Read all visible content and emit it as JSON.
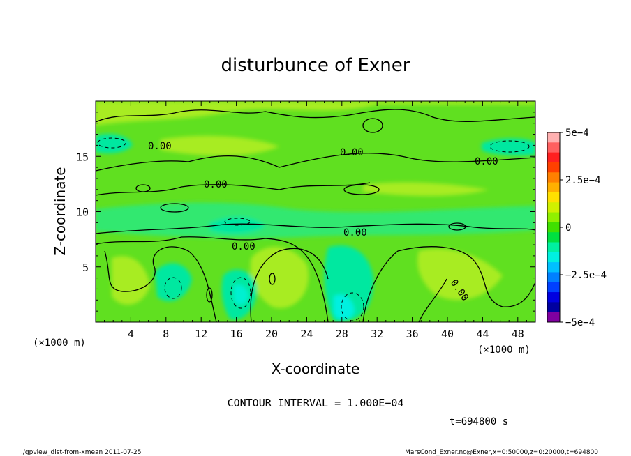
{
  "chart_data": {
    "type": "heatmap",
    "title": "disturbunce of Exner",
    "xlabel": "X-coordinate",
    "ylabel": "Z-coordinate",
    "x_unit": "(×1000 m)",
    "y_unit": "(×1000 m)",
    "xlim": [
      0,
      50
    ],
    "ylim": [
      0,
      20
    ],
    "x_ticks": [
      4,
      8,
      12,
      16,
      20,
      24,
      28,
      32,
      36,
      40,
      44,
      48
    ],
    "y_ticks": [
      5,
      10,
      15
    ],
    "colorbar": {
      "min": -0.0005,
      "max": 0.0005,
      "tick_values": [
        0.0005,
        0.00025,
        0,
        -0.00025,
        -0.0005
      ],
      "tick_labels": [
        "5e−4",
        "2.5e−4",
        "0",
        "−2.5e−4",
        "−5e−4"
      ],
      "colors": [
        "#ffb0b0",
        "#ff6060",
        "#ff2020",
        "#ff4000",
        "#ff8000",
        "#ffb000",
        "#ffe000",
        "#d0f000",
        "#90f000",
        "#40e000",
        "#00e040",
        "#00f0a0",
        "#00f0e0",
        "#00c0ff",
        "#0080ff",
        "#0040ff",
        "#0000e0",
        "#0000a0",
        "#8000a0"
      ]
    },
    "contour_labels": [
      "0.00",
      "0.00",
      "0.00",
      "0.00",
      "0.00",
      "0.00",
      "0.00"
    ],
    "contour_interval": "CONTOUR INTERVAL = 1.000E−04",
    "time_label": "t=694800 s"
  },
  "footer": {
    "left": "./gpview_dist-from-xmean   2011-07-25",
    "right": "MarsCond_Exner.nc@Exner,x=0:50000,z=0:20000,t=694800"
  }
}
